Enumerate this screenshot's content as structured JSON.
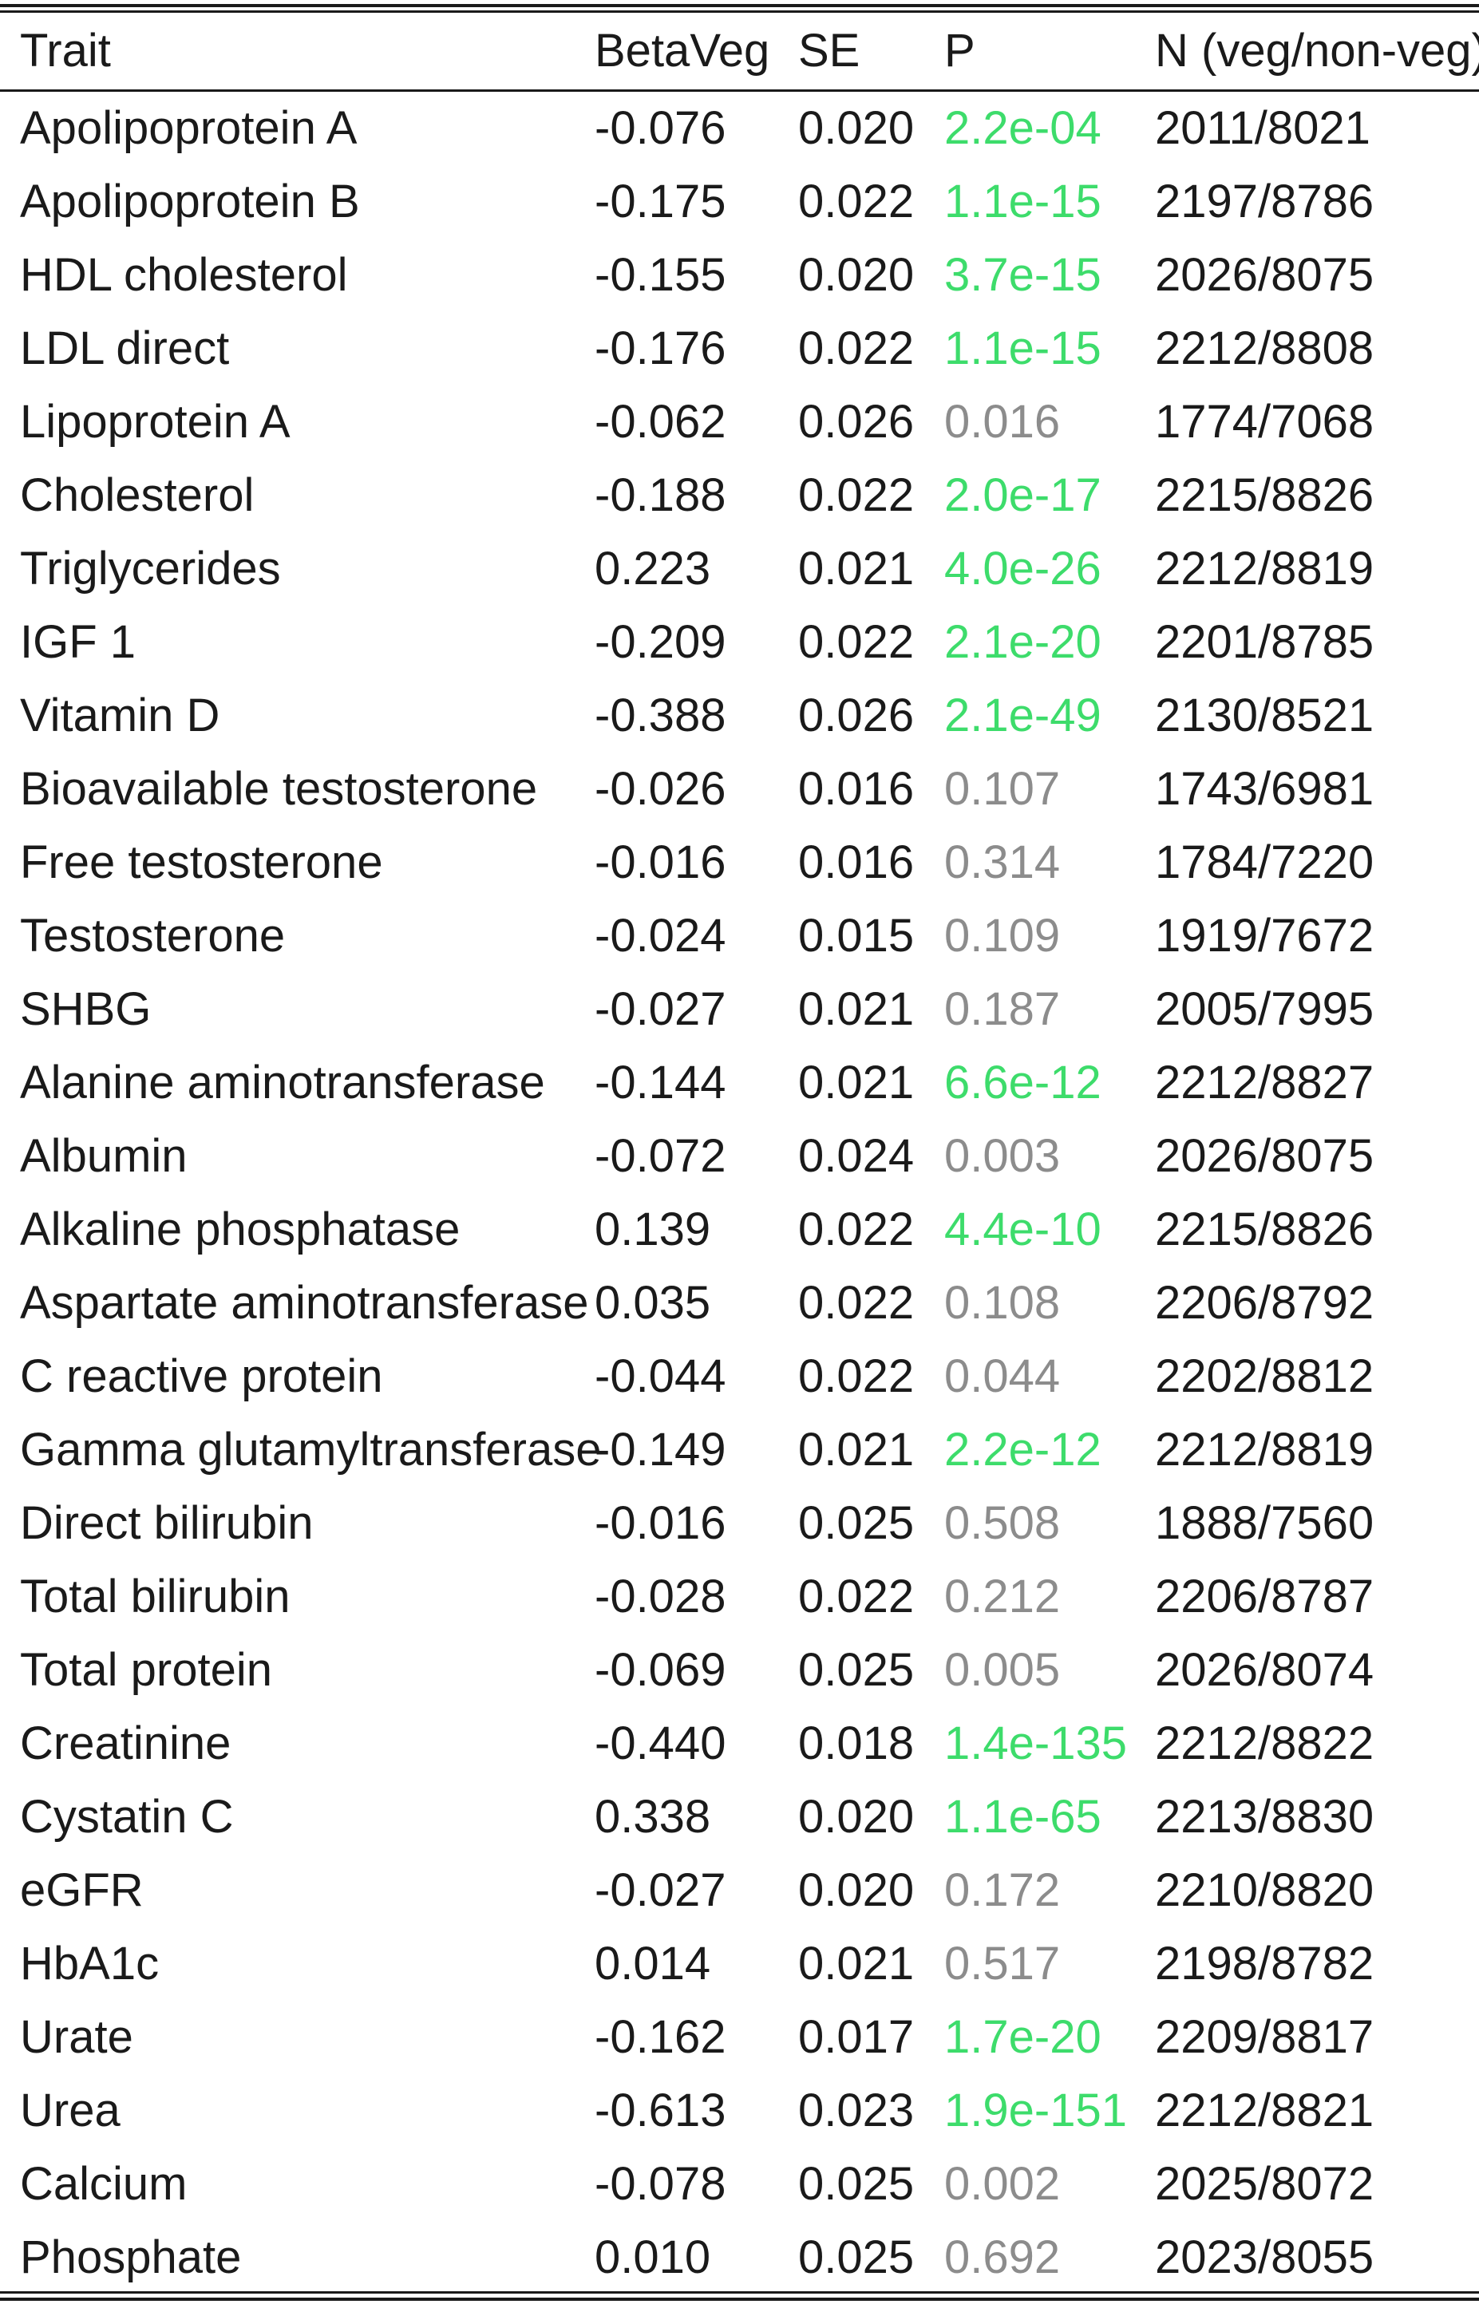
{
  "table": {
    "headers": {
      "trait": "Trait",
      "beta": "BetaVeg",
      "se": "SE",
      "p": "P",
      "n": "N (veg/non-veg)"
    },
    "colors": {
      "significant_p": "#3ddc6b",
      "nonsignificant_p": "#8c8c8c",
      "text": "#1a1a1a"
    },
    "rows": [
      {
        "trait": "Apolipoprotein A",
        "beta": "-0.076",
        "se": "0.020",
        "p": "2.2e-04",
        "n": "2011/8021",
        "sig": true
      },
      {
        "trait": "Apolipoprotein B",
        "beta": "-0.175",
        "se": "0.022",
        "p": "1.1e-15",
        "n": "2197/8786",
        "sig": true
      },
      {
        "trait": "HDL cholesterol",
        "beta": "-0.155",
        "se": "0.020",
        "p": "3.7e-15",
        "n": "2026/8075",
        "sig": true
      },
      {
        "trait": "LDL direct",
        "beta": "-0.176",
        "se": "0.022",
        "p": "1.1e-15",
        "n": "2212/8808",
        "sig": true
      },
      {
        "trait": "Lipoprotein A",
        "beta": "-0.062",
        "se": "0.026",
        "p": "0.016",
        "n": "1774/7068",
        "sig": false
      },
      {
        "trait": "Cholesterol",
        "beta": "-0.188",
        "se": "0.022",
        "p": "2.0e-17",
        "n": "2215/8826",
        "sig": true
      },
      {
        "trait": "Triglycerides",
        "beta": "0.223",
        "se": "0.021",
        "p": "4.0e-26",
        "n": "2212/8819",
        "sig": true
      },
      {
        "trait": "IGF 1",
        "beta": "-0.209",
        "se": "0.022",
        "p": "2.1e-20",
        "n": "2201/8785",
        "sig": true
      },
      {
        "trait": "Vitamin D",
        "beta": "-0.388",
        "se": "0.026",
        "p": "2.1e-49",
        "n": "2130/8521",
        "sig": true
      },
      {
        "trait": "Bioavailable testosterone",
        "beta": "-0.026",
        "se": "0.016",
        "p": "0.107",
        "n": "1743/6981",
        "sig": false
      },
      {
        "trait": "Free testosterone",
        "beta": "-0.016",
        "se": "0.016",
        "p": "0.314",
        "n": "1784/7220",
        "sig": false
      },
      {
        "trait": "Testosterone",
        "beta": "-0.024",
        "se": "0.015",
        "p": "0.109",
        "n": "1919/7672",
        "sig": false
      },
      {
        "trait": "SHBG",
        "beta": "-0.027",
        "se": "0.021",
        "p": "0.187",
        "n": "2005/7995",
        "sig": false
      },
      {
        "trait": "Alanine aminotransferase",
        "beta": "-0.144",
        "se": "0.021",
        "p": "6.6e-12",
        "n": "2212/8827",
        "sig": true
      },
      {
        "trait": "Albumin",
        "beta": "-0.072",
        "se": "0.024",
        "p": "0.003",
        "n": "2026/8075",
        "sig": false
      },
      {
        "trait": "Alkaline phosphatase",
        "beta": "0.139",
        "se": "0.022",
        "p": "4.4e-10",
        "n": "2215/8826",
        "sig": true
      },
      {
        "trait": "Aspartate aminotransferase",
        "beta": "0.035",
        "se": "0.022",
        "p": "0.108",
        "n": "2206/8792",
        "sig": false
      },
      {
        "trait": "C reactive protein",
        "beta": "-0.044",
        "se": "0.022",
        "p": "0.044",
        "n": "2202/8812",
        "sig": false
      },
      {
        "trait": "Gamma glutamyltransferase",
        "beta": "-0.149",
        "se": "0.021",
        "p": "2.2e-12",
        "n": "2212/8819",
        "sig": true
      },
      {
        "trait": "Direct bilirubin",
        "beta": "-0.016",
        "se": "0.025",
        "p": "0.508",
        "n": "1888/7560",
        "sig": false
      },
      {
        "trait": "Total bilirubin",
        "beta": "-0.028",
        "se": "0.022",
        "p": "0.212",
        "n": "2206/8787",
        "sig": false
      },
      {
        "trait": "Total protein",
        "beta": "-0.069",
        "se": "0.025",
        "p": "0.005",
        "n": "2026/8074",
        "sig": false
      },
      {
        "trait": "Creatinine",
        "beta": "-0.440",
        "se": "0.018",
        "p": "1.4e-135",
        "n": "2212/8822",
        "sig": true
      },
      {
        "trait": "Cystatin C",
        "beta": "0.338",
        "se": "0.020",
        "p": "1.1e-65",
        "n": "2213/8830",
        "sig": true
      },
      {
        "trait": "eGFR",
        "beta": "-0.027",
        "se": "0.020",
        "p": "0.172",
        "n": "2210/8820",
        "sig": false
      },
      {
        "trait": "HbA1c",
        "beta": "0.014",
        "se": "0.021",
        "p": "0.517",
        "n": "2198/8782",
        "sig": false
      },
      {
        "trait": "Urate",
        "beta": "-0.162",
        "se": "0.017",
        "p": "1.7e-20",
        "n": "2209/8817",
        "sig": true
      },
      {
        "trait": "Urea",
        "beta": "-0.613",
        "se": "0.023",
        "p": "1.9e-151",
        "n": "2212/8821",
        "sig": true
      },
      {
        "trait": "Calcium",
        "beta": "-0.078",
        "se": "0.025",
        "p": "0.002",
        "n": "2025/8072",
        "sig": false
      },
      {
        "trait": "Phosphate",
        "beta": "0.010",
        "se": "0.025",
        "p": "0.692",
        "n": "2023/8055",
        "sig": false
      }
    ]
  }
}
